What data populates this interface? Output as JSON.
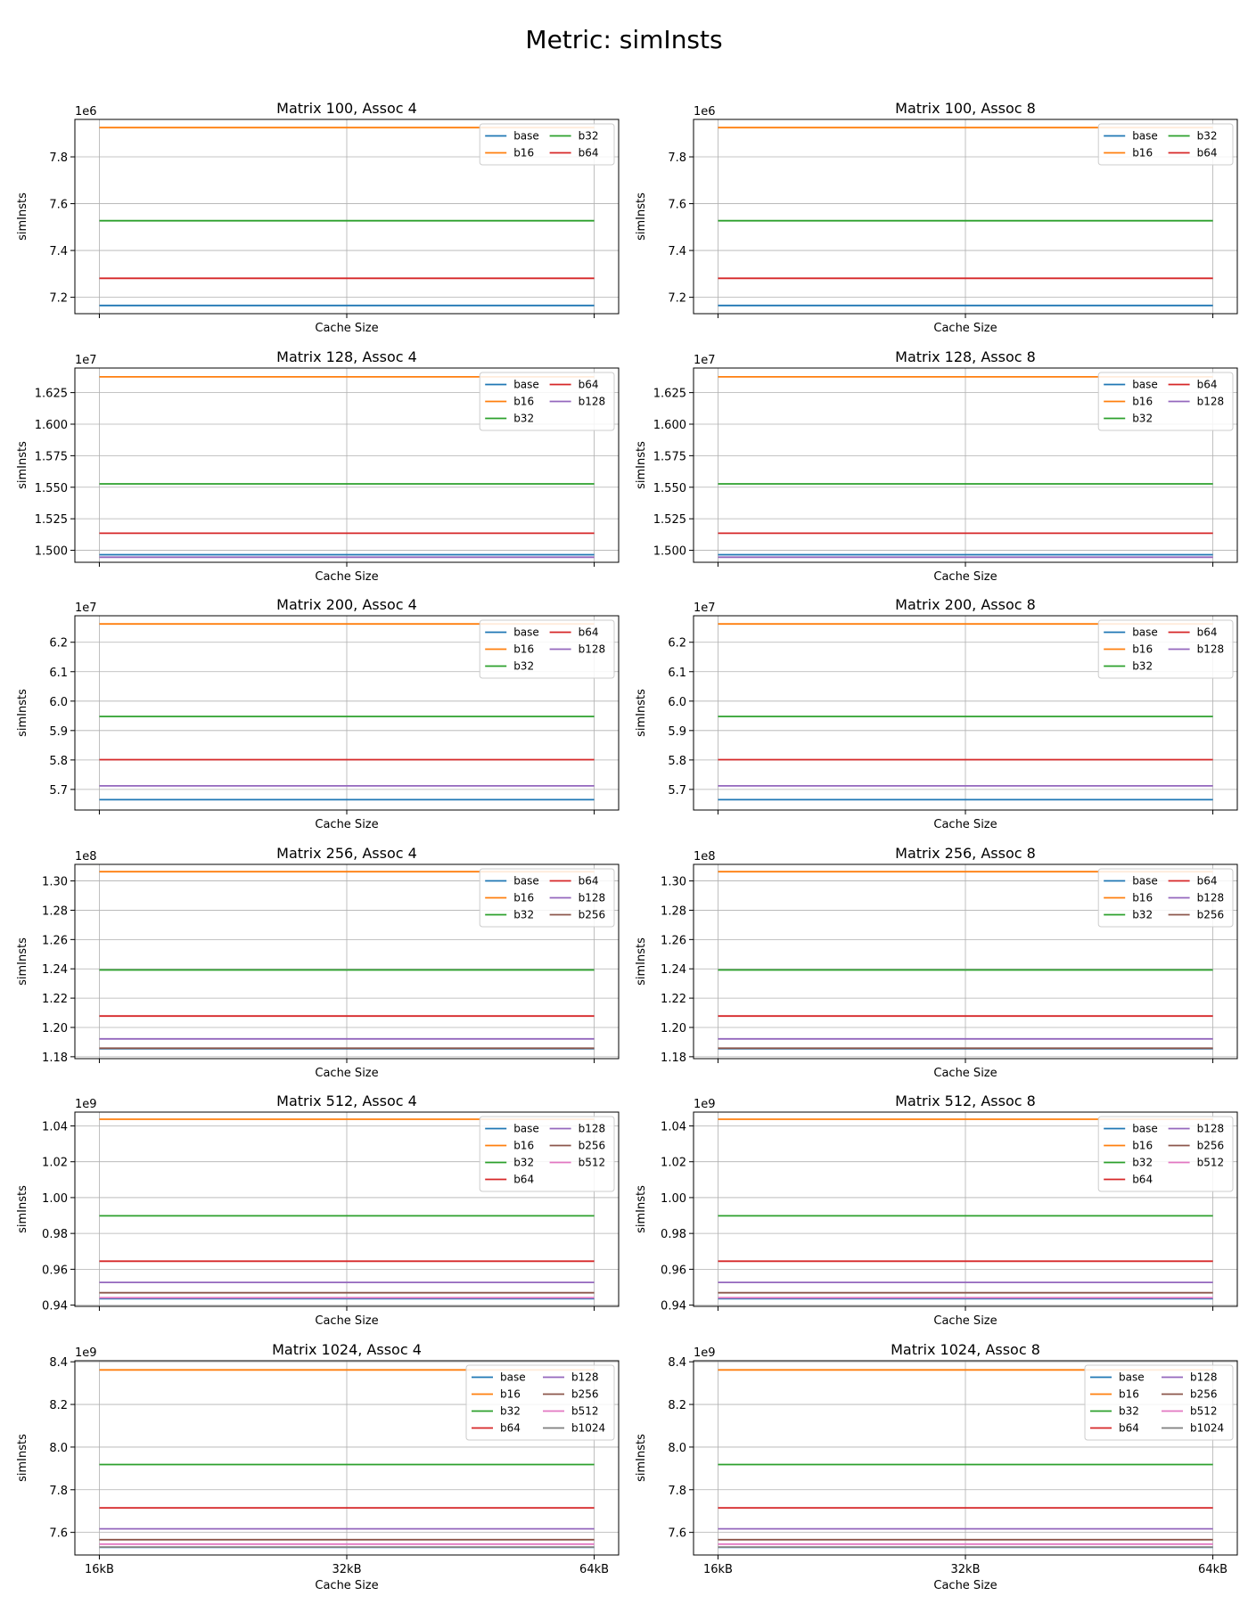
{
  "suptitle": "Metric: simInsts",
  "colors": {
    "base": "#1f77b4",
    "b16": "#ff7f0e",
    "b32": "#2ca02c",
    "b64": "#d62728",
    "b128": "#9467bd",
    "b256": "#8c564b",
    "b512": "#e377c2",
    "b1024": "#7f7f7f"
  },
  "chart_data": [
    {
      "type": "line",
      "title": "Matrix 100, Assoc 4",
      "xlabel": "Cache Size",
      "ylabel": "simInsts",
      "x": [
        "16kB",
        "32kB",
        "64kB"
      ],
      "show_xticklabels": false,
      "offset_text": "1e6",
      "scale": 1000000,
      "ylim": [
        7.13,
        7.96
      ],
      "yticks": [
        7.2,
        7.4,
        7.6,
        7.8
      ],
      "grid": true,
      "legend": "top-right",
      "legend_cols": 2,
      "series": [
        {
          "name": "base",
          "values": [
            7.165,
            7.165,
            7.165
          ]
        },
        {
          "name": "b16",
          "values": [
            7.925,
            7.925,
            7.925
          ]
        },
        {
          "name": "b32",
          "values": [
            7.527,
            7.527,
            7.527
          ]
        },
        {
          "name": "b64",
          "values": [
            7.281,
            7.281,
            7.281
          ]
        }
      ]
    },
    {
      "type": "line",
      "title": "Matrix 100, Assoc 8",
      "xlabel": "Cache Size",
      "ylabel": "simInsts",
      "x": [
        "16kB",
        "32kB",
        "64kB"
      ],
      "show_xticklabels": false,
      "offset_text": "1e6",
      "scale": 1000000,
      "ylim": [
        7.13,
        7.96
      ],
      "yticks": [
        7.2,
        7.4,
        7.6,
        7.8
      ],
      "grid": true,
      "legend": "top-right",
      "legend_cols": 2,
      "series": [
        {
          "name": "base",
          "values": [
            7.165,
            7.165,
            7.165
          ]
        },
        {
          "name": "b16",
          "values": [
            7.925,
            7.925,
            7.925
          ]
        },
        {
          "name": "b32",
          "values": [
            7.527,
            7.527,
            7.527
          ]
        },
        {
          "name": "b64",
          "values": [
            7.281,
            7.281,
            7.281
          ]
        }
      ]
    },
    {
      "type": "line",
      "title": "Matrix 128, Assoc 4",
      "xlabel": "Cache Size",
      "ylabel": "simInsts",
      "x": [
        "16kB",
        "32kB",
        "64kB"
      ],
      "show_xticklabels": false,
      "offset_text": "1e7",
      "scale": 10000000,
      "ylim": [
        1.4905,
        1.6445
      ],
      "yticks": [
        1.5,
        1.525,
        1.55,
        1.575,
        1.6,
        1.625
      ],
      "tick_decimals": 3,
      "grid": true,
      "legend": "top-right",
      "legend_cols": 2,
      "series": [
        {
          "name": "base",
          "values": [
            1.4965,
            1.4965,
            1.4965
          ]
        },
        {
          "name": "b16",
          "values": [
            1.6375,
            1.6375,
            1.6375
          ]
        },
        {
          "name": "b32",
          "values": [
            1.5527,
            1.5527,
            1.5527
          ]
        },
        {
          "name": "b64",
          "values": [
            1.5135,
            1.5135,
            1.5135
          ]
        },
        {
          "name": "b128",
          "values": [
            1.4945,
            1.4945,
            1.4945
          ]
        }
      ]
    },
    {
      "type": "line",
      "title": "Matrix 128, Assoc 8",
      "xlabel": "Cache Size",
      "ylabel": "simInsts",
      "x": [
        "16kB",
        "32kB",
        "64kB"
      ],
      "show_xticklabels": false,
      "offset_text": "1e7",
      "scale": 10000000,
      "ylim": [
        1.4905,
        1.6445
      ],
      "yticks": [
        1.5,
        1.525,
        1.55,
        1.575,
        1.6,
        1.625
      ],
      "tick_decimals": 3,
      "grid": true,
      "legend": "top-right",
      "legend_cols": 2,
      "series": [
        {
          "name": "base",
          "values": [
            1.4965,
            1.4965,
            1.4965
          ]
        },
        {
          "name": "b16",
          "values": [
            1.6375,
            1.6375,
            1.6375
          ]
        },
        {
          "name": "b32",
          "values": [
            1.5527,
            1.5527,
            1.5527
          ]
        },
        {
          "name": "b64",
          "values": [
            1.5135,
            1.5135,
            1.5135
          ]
        },
        {
          "name": "b128",
          "values": [
            1.4945,
            1.4945,
            1.4945
          ]
        }
      ]
    },
    {
      "type": "line",
      "title": "Matrix 200, Assoc 4",
      "xlabel": "Cache Size",
      "ylabel": "simInsts",
      "x": [
        "16kB",
        "32kB",
        "64kB"
      ],
      "show_xticklabels": false,
      "offset_text": "1e7",
      "scale": 10000000,
      "ylim": [
        5.63,
        6.29
      ],
      "yticks": [
        5.7,
        5.8,
        5.9,
        6.0,
        6.1,
        6.2
      ],
      "grid": true,
      "legend": "top-right",
      "legend_cols": 2,
      "series": [
        {
          "name": "base",
          "values": [
            5.665,
            5.665,
            5.665
          ]
        },
        {
          "name": "b16",
          "values": [
            6.262,
            6.262,
            6.262
          ]
        },
        {
          "name": "b32",
          "values": [
            5.948,
            5.948,
            5.948
          ]
        },
        {
          "name": "b64",
          "values": [
            5.801,
            5.801,
            5.801
          ]
        },
        {
          "name": "b128",
          "values": [
            5.712,
            5.712,
            5.712
          ]
        }
      ]
    },
    {
      "type": "line",
      "title": "Matrix 200, Assoc 8",
      "xlabel": "Cache Size",
      "ylabel": "simInsts",
      "x": [
        "16kB",
        "32kB",
        "64kB"
      ],
      "show_xticklabels": false,
      "offset_text": "1e7",
      "scale": 10000000,
      "ylim": [
        5.63,
        6.29
      ],
      "yticks": [
        5.7,
        5.8,
        5.9,
        6.0,
        6.1,
        6.2
      ],
      "grid": true,
      "legend": "top-right",
      "legend_cols": 2,
      "series": [
        {
          "name": "base",
          "values": [
            5.665,
            5.665,
            5.665
          ]
        },
        {
          "name": "b16",
          "values": [
            6.262,
            6.262,
            6.262
          ]
        },
        {
          "name": "b32",
          "values": [
            5.948,
            5.948,
            5.948
          ]
        },
        {
          "name": "b64",
          "values": [
            5.801,
            5.801,
            5.801
          ]
        },
        {
          "name": "b128",
          "values": [
            5.712,
            5.712,
            5.712
          ]
        }
      ]
    },
    {
      "type": "line",
      "title": "Matrix 256, Assoc 4",
      "xlabel": "Cache Size",
      "ylabel": "simInsts",
      "x": [
        "16kB",
        "32kB",
        "64kB"
      ],
      "show_xticklabels": false,
      "offset_text": "1e8",
      "scale": 100000000,
      "ylim": [
        1.1787,
        1.3113
      ],
      "yticks": [
        1.18,
        1.2,
        1.22,
        1.24,
        1.26,
        1.28,
        1.3
      ],
      "tick_decimals": 2,
      "grid": true,
      "legend": "top-right",
      "legend_cols": 2,
      "series": [
        {
          "name": "base",
          "values": [
            1.1855,
            1.1855,
            1.1855
          ]
        },
        {
          "name": "b16",
          "values": [
            1.3063,
            1.3063,
            1.3063
          ]
        },
        {
          "name": "b32",
          "values": [
            1.2392,
            1.2392,
            1.2392
          ]
        },
        {
          "name": "b64",
          "values": [
            1.2078,
            1.2078,
            1.2078
          ]
        },
        {
          "name": "b128",
          "values": [
            1.1922,
            1.1922,
            1.1922
          ]
        },
        {
          "name": "b256",
          "values": [
            1.1858,
            1.1858,
            1.1858
          ]
        }
      ]
    },
    {
      "type": "line",
      "title": "Matrix 256, Assoc 8",
      "xlabel": "Cache Size",
      "ylabel": "simInsts",
      "x": [
        "16kB",
        "32kB",
        "64kB"
      ],
      "show_xticklabels": false,
      "offset_text": "1e8",
      "scale": 100000000,
      "ylim": [
        1.1787,
        1.3113
      ],
      "yticks": [
        1.18,
        1.2,
        1.22,
        1.24,
        1.26,
        1.28,
        1.3
      ],
      "tick_decimals": 2,
      "grid": true,
      "legend": "top-right",
      "legend_cols": 2,
      "series": [
        {
          "name": "base",
          "values": [
            1.1855,
            1.1855,
            1.1855
          ]
        },
        {
          "name": "b16",
          "values": [
            1.3063,
            1.3063,
            1.3063
          ]
        },
        {
          "name": "b32",
          "values": [
            1.2392,
            1.2392,
            1.2392
          ]
        },
        {
          "name": "b64",
          "values": [
            1.2078,
            1.2078,
            1.2078
          ]
        },
        {
          "name": "b128",
          "values": [
            1.1922,
            1.1922,
            1.1922
          ]
        },
        {
          "name": "b256",
          "values": [
            1.1858,
            1.1858,
            1.1858
          ]
        }
      ]
    },
    {
      "type": "line",
      "title": "Matrix 512, Assoc 4",
      "xlabel": "Cache Size",
      "ylabel": "simInsts",
      "x": [
        "16kB",
        "32kB",
        "64kB"
      ],
      "show_xticklabels": false,
      "offset_text": "1e9",
      "scale": 1000000000,
      "ylim": [
        0.9393,
        1.0477
      ],
      "yticks": [
        0.94,
        0.96,
        0.98,
        1.0,
        1.02,
        1.04
      ],
      "tick_decimals": 2,
      "grid": true,
      "legend": "top-right",
      "legend_cols": 2,
      "series": [
        {
          "name": "base",
          "values": [
            0.9436,
            0.9436,
            0.9436
          ]
        },
        {
          "name": "b16",
          "values": [
            1.0437,
            1.0437,
            1.0437
          ]
        },
        {
          "name": "b32",
          "values": [
            0.9898,
            0.9898,
            0.9898
          ]
        },
        {
          "name": "b64",
          "values": [
            0.9645,
            0.9645,
            0.9645
          ]
        },
        {
          "name": "b128",
          "values": [
            0.9527,
            0.9527,
            0.9527
          ]
        },
        {
          "name": "b256",
          "values": [
            0.9469,
            0.9469,
            0.9469
          ]
        },
        {
          "name": "b512",
          "values": [
            0.9441,
            0.9441,
            0.9441
          ]
        }
      ]
    },
    {
      "type": "line",
      "title": "Matrix 512, Assoc 8",
      "xlabel": "Cache Size",
      "ylabel": "simInsts",
      "x": [
        "16kB",
        "32kB",
        "64kB"
      ],
      "show_xticklabels": false,
      "offset_text": "1e9",
      "scale": 1000000000,
      "ylim": [
        0.9393,
        1.0477
      ],
      "yticks": [
        0.94,
        0.96,
        0.98,
        1.0,
        1.02,
        1.04
      ],
      "tick_decimals": 2,
      "grid": true,
      "legend": "top-right",
      "legend_cols": 2,
      "series": [
        {
          "name": "base",
          "values": [
            0.9436,
            0.9436,
            0.9436
          ]
        },
        {
          "name": "b16",
          "values": [
            1.0437,
            1.0437,
            1.0437
          ]
        },
        {
          "name": "b32",
          "values": [
            0.9898,
            0.9898,
            0.9898
          ]
        },
        {
          "name": "b64",
          "values": [
            0.9645,
            0.9645,
            0.9645
          ]
        },
        {
          "name": "b128",
          "values": [
            0.9527,
            0.9527,
            0.9527
          ]
        },
        {
          "name": "b256",
          "values": [
            0.9469,
            0.9469,
            0.9469
          ]
        },
        {
          "name": "b512",
          "values": [
            0.9441,
            0.9441,
            0.9441
          ]
        }
      ]
    },
    {
      "type": "line",
      "title": "Matrix 1024, Assoc 4",
      "xlabel": "Cache Size",
      "ylabel": "simInsts",
      "x": [
        "16kB",
        "32kB",
        "64kB"
      ],
      "show_xticklabels": true,
      "offset_text": "1e9",
      "scale": 1000000000,
      "ylim": [
        7.494,
        8.405
      ],
      "yticks": [
        7.6,
        7.8,
        8.0,
        8.2,
        8.4
      ],
      "grid": true,
      "legend": "top-right",
      "legend_cols": 2,
      "series": [
        {
          "name": "base",
          "values": [
            7.53,
            7.53,
            7.53
          ]
        },
        {
          "name": "b16",
          "values": [
            8.362,
            8.362,
            8.362
          ]
        },
        {
          "name": "b32",
          "values": [
            7.918,
            7.918,
            7.918
          ]
        },
        {
          "name": "b64",
          "values": [
            7.715,
            7.715,
            7.715
          ]
        },
        {
          "name": "b128",
          "values": [
            7.617,
            7.617,
            7.617
          ]
        },
        {
          "name": "b256",
          "values": [
            7.566,
            7.566,
            7.566
          ]
        },
        {
          "name": "b512",
          "values": [
            7.545,
            7.545,
            7.545
          ]
        },
        {
          "name": "b1024",
          "values": [
            7.531,
            7.531,
            7.531
          ]
        }
      ]
    },
    {
      "type": "line",
      "title": "Matrix 1024, Assoc 8",
      "xlabel": "Cache Size",
      "ylabel": "simInsts",
      "x": [
        "16kB",
        "32kB",
        "64kB"
      ],
      "show_xticklabels": true,
      "offset_text": "1e9",
      "scale": 1000000000,
      "ylim": [
        7.494,
        8.405
      ],
      "yticks": [
        7.6,
        7.8,
        8.0,
        8.2,
        8.4
      ],
      "grid": true,
      "legend": "top-right",
      "legend_cols": 2,
      "series": [
        {
          "name": "base",
          "values": [
            7.53,
            7.53,
            7.53
          ]
        },
        {
          "name": "b16",
          "values": [
            8.362,
            8.362,
            8.362
          ]
        },
        {
          "name": "b32",
          "values": [
            7.918,
            7.918,
            7.918
          ]
        },
        {
          "name": "b64",
          "values": [
            7.715,
            7.715,
            7.715
          ]
        },
        {
          "name": "b128",
          "values": [
            7.617,
            7.617,
            7.617
          ]
        },
        {
          "name": "b256",
          "values": [
            7.566,
            7.566,
            7.566
          ]
        },
        {
          "name": "b512",
          "values": [
            7.545,
            7.545,
            7.545
          ]
        },
        {
          "name": "b1024",
          "values": [
            7.531,
            7.531,
            7.531
          ]
        }
      ]
    }
  ]
}
